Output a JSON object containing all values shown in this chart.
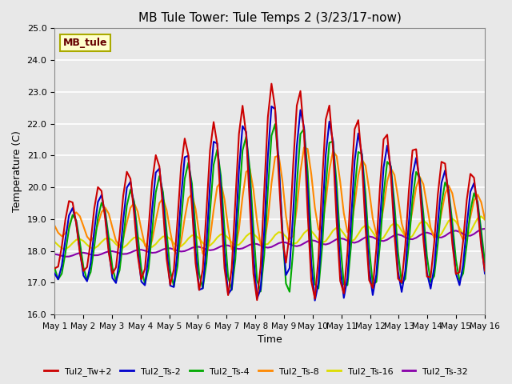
{
  "title": "MB Tule Tower: Tule Temps 2 (3/23/17-now)",
  "xlabel": "Time",
  "ylabel": "Temperature (C)",
  "ylim": [
    16.0,
    25.0
  ],
  "yticks": [
    16.0,
    17.0,
    18.0,
    19.0,
    20.0,
    21.0,
    22.0,
    23.0,
    24.0,
    25.0
  ],
  "background_color": "#e8e8e8",
  "plot_bg_color": "#e8e8e8",
  "grid_color": "#ffffff",
  "series": {
    "Tul2_Tw+2": {
      "color": "#cc0000",
      "lw": 1.5
    },
    "Tul2_Ts-2": {
      "color": "#0000cc",
      "lw": 1.5
    },
    "Tul2_Ts-4": {
      "color": "#00aa00",
      "lw": 1.5
    },
    "Tul2_Ts-8": {
      "color": "#ff8800",
      "lw": 1.5
    },
    "Tul2_Ts-16": {
      "color": "#dddd00",
      "lw": 1.5
    },
    "Tul2_Ts-32": {
      "color": "#8800aa",
      "lw": 1.5
    }
  },
  "xtick_labels": [
    "May 1",
    "May 2",
    "May 3",
    "May 4",
    "May 5",
    "May 6",
    "May 7",
    "May 8",
    "May 9",
    "May 10",
    "May 11",
    "May 12",
    "May 13",
    "May 14",
    "May 15",
    "May 16"
  ],
  "legend_label": "MB_tule",
  "legend_box_color": "#ffffcc",
  "legend_box_edge": "#aaaa00"
}
